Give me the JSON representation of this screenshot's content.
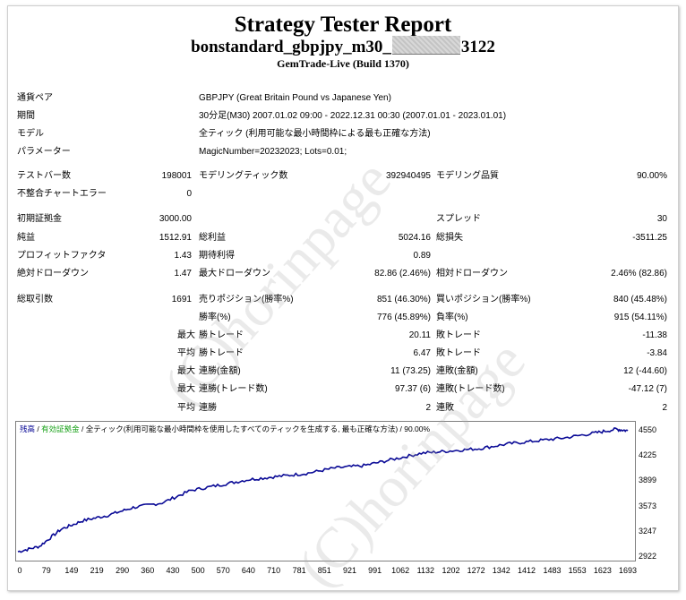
{
  "header": {
    "title": "Strategy Tester Report",
    "subtitle_prefix": "bonstandard_gbpjpy_m30_",
    "subtitle_suffix": "3122",
    "build": "GemTrade-Live (Build 1370)"
  },
  "info": [
    {
      "label": "通貨ペア",
      "value": "GBPJPY (Great Britain Pound vs Japanese Yen)"
    },
    {
      "label": "期間",
      "value": "30分足(M30) 2007.01.02 09:00 - 2022.12.31 00:30 (2007.01.01 - 2023.01.01)"
    },
    {
      "label": "モデル",
      "value": "全ティック (利用可能な最小時間枠による最も正確な方法)"
    },
    {
      "label": "パラメーター",
      "value": "MagicNumber=20232023; Lots=0.01;"
    }
  ],
  "stats": {
    "bars_label": "テストバー数",
    "bars": "198001",
    "ticks_label": "モデリングティック数",
    "ticks": "392940495",
    "quality_label": "モデリング品質",
    "quality": "90.00%",
    "mismatch_label": "不整合チャートエラー",
    "mismatch": "0",
    "deposit_label": "初期証拠金",
    "deposit": "3000.00",
    "spread_label": "スプレッド",
    "spread": "30",
    "net_label": "純益",
    "net": "1512.91",
    "gross_profit_label": "総利益",
    "gross_profit": "5024.16",
    "gross_loss_label": "総損失",
    "gross_loss": "-3511.25",
    "pf_label": "プロフィットファクタ",
    "pf": "1.43",
    "payoff_label": "期待利得",
    "payoff": "0.89",
    "abs_dd_label": "絶対ドローダウン",
    "abs_dd": "1.47",
    "max_dd_label": "最大ドローダウン",
    "max_dd": "82.86 (2.46%)",
    "rel_dd_label": "相対ドローダウン",
    "rel_dd": "2.46% (82.86)",
    "trades_label": "総取引数",
    "trades": "1691",
    "short_label": "売りポジション(勝率%)",
    "short": "851 (46.30%)",
    "long_label": "買いポジション(勝率%)",
    "long": "840 (45.48%)",
    "win_label": "勝率(%)",
    "win": "776 (45.89%)",
    "loss_label": "負率(%)",
    "loss": "915 (54.11%)",
    "max_word": "最大",
    "avg_word": "平均",
    "largest_win_label": "勝トレード",
    "largest_win": "20.11",
    "largest_loss_label": "敗トレード",
    "largest_loss": "-11.38",
    "avg_win_label": "勝トレード",
    "avg_win": "6.47",
    "avg_loss_label": "敗トレード",
    "avg_loss": "-3.84",
    "cons_wins_amt_label": "連勝(金額)",
    "cons_wins_amt": "11 (73.25)",
    "cons_loss_amt_label": "連敗(金額)",
    "cons_loss_amt": "12 (-44.60)",
    "cons_wins_cnt_label": "連勝(トレード数)",
    "cons_wins_cnt": "97.37 (6)",
    "cons_loss_cnt_label": "連敗(トレード数)",
    "cons_loss_cnt": "-47.12 (7)",
    "avg_cons_wins_label": "連勝",
    "avg_cons_wins": "2",
    "avg_cons_loss_label": "連敗",
    "avg_cons_loss": "2"
  },
  "legend": {
    "balance": "残高",
    "sep1": " / ",
    "funds": "有効証拠金",
    "rest": " / 全ティック(利用可能な最小時間枠を使用したすべてのティックを生成する, 最も正確な方法) / 90.00%"
  },
  "watermark": "(C)horinpage",
  "colors": {
    "balance_line": "#0a0a96",
    "funds_text": "#16a016",
    "balance_text": "#0a0a96"
  },
  "chart_data": {
    "type": "line",
    "x_ticks": [
      "0",
      "79",
      "149",
      "219",
      "290",
      "360",
      "430",
      "500",
      "570",
      "640",
      "710",
      "781",
      "851",
      "921",
      "991",
      "1062",
      "1132",
      "1202",
      "1272",
      "1342",
      "1412",
      "1483",
      "1553",
      "1623",
      "1693"
    ],
    "y_ticks": [
      "4550",
      "4225",
      "3899",
      "3573",
      "3247",
      "2922"
    ],
    "ylim": [
      2922,
      4550
    ],
    "xlim": [
      0,
      1693
    ],
    "series": [
      {
        "name": "残高",
        "points": [
          [
            0,
            2990
          ],
          [
            60,
            3060
          ],
          [
            120,
            3280
          ],
          [
            180,
            3390
          ],
          [
            250,
            3460
          ],
          [
            320,
            3560
          ],
          [
            400,
            3620
          ],
          [
            480,
            3780
          ],
          [
            560,
            3850
          ],
          [
            640,
            3920
          ],
          [
            720,
            3960
          ],
          [
            800,
            4000
          ],
          [
            880,
            4070
          ],
          [
            960,
            4100
          ],
          [
            1040,
            4180
          ],
          [
            1120,
            4260
          ],
          [
            1200,
            4290
          ],
          [
            1280,
            4320
          ],
          [
            1360,
            4380
          ],
          [
            1440,
            4420
          ],
          [
            1520,
            4460
          ],
          [
            1600,
            4520
          ],
          [
            1660,
            4570
          ],
          [
            1693,
            4550
          ]
        ]
      }
    ]
  }
}
